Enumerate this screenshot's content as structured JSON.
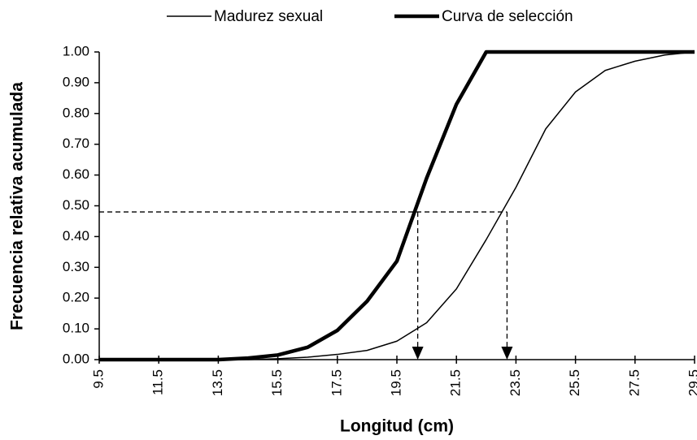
{
  "chart_data": {
    "type": "line",
    "x_label": "Longitud (cm)",
    "y_label": "Frecuencia relativa acumulada",
    "x": [
      9.5,
      10.5,
      11.5,
      12.5,
      13.5,
      14.5,
      15.5,
      16.5,
      17.5,
      18.5,
      19.5,
      20.5,
      21.5,
      22.5,
      23.5,
      24.5,
      25.5,
      26.5,
      27.5,
      28.5,
      29.5
    ],
    "series": [
      {
        "name": "Madurez sexual",
        "color": "#000000",
        "width": 1.5,
        "values": [
          0,
          0,
          0,
          0,
          0,
          0,
          0.003,
          0.008,
          0.017,
          0.03,
          0.06,
          0.12,
          0.23,
          0.39,
          0.56,
          0.75,
          0.87,
          0.94,
          0.97,
          0.99,
          1.0
        ]
      },
      {
        "name": "Curva de selección",
        "color": "#000000",
        "width": 4.5,
        "values": [
          0,
          0,
          0,
          0,
          0,
          0.005,
          0.015,
          0.04,
          0.095,
          0.19,
          0.32,
          0.59,
          0.83,
          1.0,
          1.0,
          1.0,
          1.0,
          1.0,
          1.0,
          1.0,
          1.0
        ]
      }
    ],
    "xlim": [
      9.5,
      29.5
    ],
    "xticks": [
      9.5,
      11.5,
      13.5,
      15.5,
      17.5,
      19.5,
      21.5,
      23.5,
      25.5,
      27.5,
      29.5
    ],
    "ylim": [
      0,
      1
    ],
    "yticks": [
      {
        "value": 0,
        "label": "0.00"
      },
      {
        "value": 0.1,
        "label": "0.10"
      },
      {
        "value": 0.2,
        "label": "0.20"
      },
      {
        "value": 0.3,
        "label": "0.30"
      },
      {
        "value": 0.4,
        "label": "0.40"
      },
      {
        "value": 0.5,
        "label": "0.50"
      },
      {
        "value": 0.6,
        "label": "0.60"
      },
      {
        "value": 0.7,
        "label": "0.70"
      },
      {
        "value": 0.8,
        "label": "0.80"
      },
      {
        "value": 0.9,
        "label": "0.90"
      },
      {
        "value": 1,
        "label": "1.00"
      }
    ],
    "reference_lines": {
      "y": 0.48,
      "x": [
        20.2,
        23.2
      ]
    },
    "grid": false,
    "legend": "top"
  }
}
